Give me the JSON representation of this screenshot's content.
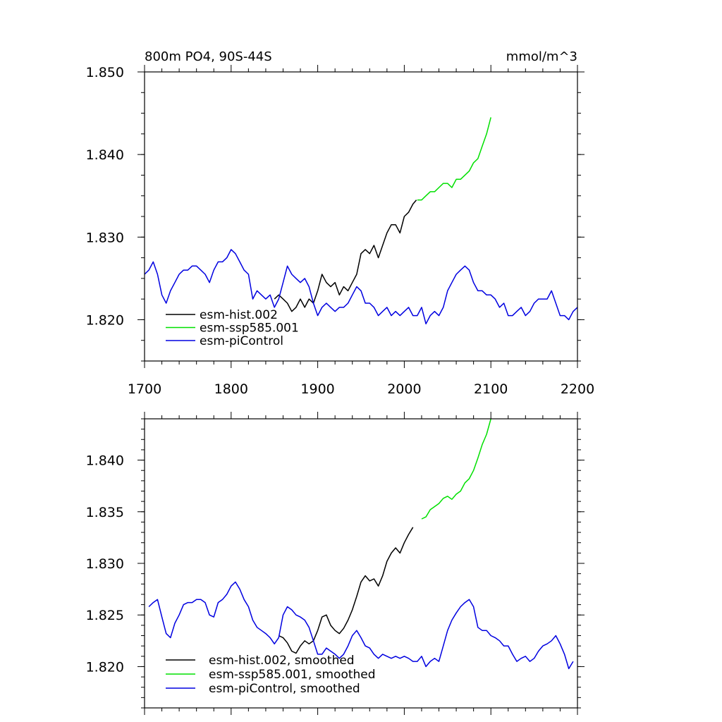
{
  "chart_data": [
    {
      "type": "line",
      "title": "800m PO4, 90S-44S",
      "units": "mmol/m^3",
      "xlim": [
        1700,
        2200
      ],
      "ylim": [
        1.815,
        1.85
      ],
      "x_ticks": [
        1700,
        1800,
        1900,
        2000,
        2100,
        2200
      ],
      "x_tick_labels": [
        "1700",
        "1800",
        "1900",
        "2000",
        "2100",
        "2200"
      ],
      "y_ticks": [
        1.82,
        1.83,
        1.84,
        1.85
      ],
      "y_tick_labels": [
        "1.820",
        "1.830",
        "1.840",
        "1.850"
      ],
      "legend_position": "bottom-left",
      "series": [
        {
          "name": "esm-hist.002",
          "color": "#000000",
          "x": [
            1850,
            1855,
            1860,
            1865,
            1870,
            1875,
            1880,
            1885,
            1890,
            1895,
            1900,
            1905,
            1910,
            1915,
            1920,
            1925,
            1930,
            1935,
            1940,
            1945,
            1950,
            1955,
            1960,
            1965,
            1970,
            1975,
            1980,
            1985,
            1990,
            1995,
            2000,
            2005,
            2010,
            2014
          ],
          "y": [
            1.8225,
            1.823,
            1.8225,
            1.822,
            1.821,
            1.8215,
            1.8225,
            1.8215,
            1.8225,
            1.822,
            1.8235,
            1.8255,
            1.8245,
            1.824,
            1.8245,
            1.823,
            1.824,
            1.8235,
            1.8245,
            1.8255,
            1.828,
            1.8285,
            1.828,
            1.829,
            1.8275,
            1.829,
            1.8305,
            1.8315,
            1.8315,
            1.8305,
            1.8325,
            1.833,
            1.834,
            1.8345
          ]
        },
        {
          "name": "esm-ssp585.001",
          "color": "#00e000",
          "x": [
            2015,
            2020,
            2025,
            2030,
            2035,
            2040,
            2045,
            2050,
            2055,
            2060,
            2065,
            2070,
            2075,
            2080,
            2085,
            2090,
            2095,
            2100
          ],
          "y": [
            1.8345,
            1.8345,
            1.835,
            1.8355,
            1.8355,
            1.836,
            1.8365,
            1.8365,
            1.836,
            1.837,
            1.837,
            1.8375,
            1.838,
            1.839,
            1.8395,
            1.841,
            1.8425,
            1.8445
          ]
        },
        {
          "name": "esm-piControl",
          "color": "#0000e0",
          "x": [
            1700,
            1705,
            1710,
            1715,
            1720,
            1725,
            1730,
            1735,
            1740,
            1745,
            1750,
            1755,
            1760,
            1765,
            1770,
            1775,
            1780,
            1785,
            1790,
            1795,
            1800,
            1805,
            1810,
            1815,
            1820,
            1825,
            1830,
            1835,
            1840,
            1845,
            1850,
            1855,
            1860,
            1865,
            1870,
            1875,
            1880,
            1885,
            1890,
            1895,
            1900,
            1905,
            1910,
            1915,
            1920,
            1925,
            1930,
            1935,
            1940,
            1945,
            1950,
            1955,
            1960,
            1965,
            1970,
            1975,
            1980,
            1985,
            1990,
            1995,
            2000,
            2005,
            2010,
            2015,
            2020,
            2025,
            2030,
            2035,
            2040,
            2045,
            2050,
            2055,
            2060,
            2065,
            2070,
            2075,
            2080,
            2085,
            2090,
            2095,
            2100,
            2105,
            2110,
            2115,
            2120,
            2125,
            2130,
            2135,
            2140,
            2145,
            2150,
            2155,
            2160,
            2165,
            2170,
            2175,
            2180,
            2185,
            2190,
            2195,
            2200
          ],
          "y": [
            1.8255,
            1.826,
            1.827,
            1.8255,
            1.823,
            1.822,
            1.8235,
            1.8245,
            1.8255,
            1.826,
            1.826,
            1.8265,
            1.8265,
            1.826,
            1.8255,
            1.8245,
            1.826,
            1.827,
            1.827,
            1.8275,
            1.8285,
            1.828,
            1.827,
            1.826,
            1.8255,
            1.8225,
            1.8235,
            1.823,
            1.8225,
            1.823,
            1.8215,
            1.8225,
            1.8245,
            1.8265,
            1.8255,
            1.825,
            1.8245,
            1.825,
            1.824,
            1.822,
            1.8205,
            1.8215,
            1.822,
            1.8215,
            1.821,
            1.8215,
            1.8215,
            1.822,
            1.823,
            1.824,
            1.8235,
            1.822,
            1.822,
            1.8215,
            1.8205,
            1.821,
            1.8215,
            1.8205,
            1.821,
            1.8205,
            1.821,
            1.8215,
            1.8205,
            1.8205,
            1.8215,
            1.8195,
            1.8205,
            1.821,
            1.8205,
            1.8215,
            1.8235,
            1.8245,
            1.8255,
            1.826,
            1.8265,
            1.826,
            1.8245,
            1.8235,
            1.8235,
            1.823,
            1.823,
            1.8225,
            1.8215,
            1.822,
            1.8205,
            1.8205,
            1.821,
            1.8215,
            1.8205,
            1.821,
            1.822,
            1.8225,
            1.8225,
            1.8225,
            1.8235,
            1.822,
            1.8205,
            1.8205,
            1.82,
            1.821,
            1.8215
          ]
        }
      ]
    },
    {
      "type": "line",
      "xlim": [
        1700,
        2200
      ],
      "ylim": [
        1.816,
        1.844
      ],
      "y_ticks": [
        1.82,
        1.825,
        1.83,
        1.835,
        1.84
      ],
      "y_tick_labels": [
        "1.820",
        "1.825",
        "1.830",
        "1.835",
        "1.840"
      ],
      "x_ticks": [
        1700,
        1800,
        1900,
        2000,
        2100,
        2200
      ],
      "legend_position": "bottom-left",
      "series": [
        {
          "name": "esm-hist.002, smoothed",
          "color": "#000000",
          "x": [
            1855,
            1860,
            1865,
            1870,
            1875,
            1880,
            1885,
            1890,
            1895,
            1900,
            1905,
            1910,
            1915,
            1920,
            1925,
            1930,
            1935,
            1940,
            1945,
            1950,
            1955,
            1960,
            1965,
            1970,
            1975,
            1980,
            1985,
            1990,
            1995,
            2000,
            2005,
            2010
          ],
          "y": [
            1.823,
            1.8228,
            1.8223,
            1.8215,
            1.8213,
            1.822,
            1.8225,
            1.8222,
            1.8225,
            1.8235,
            1.8248,
            1.825,
            1.824,
            1.8235,
            1.8232,
            1.8237,
            1.8245,
            1.8255,
            1.8268,
            1.8282,
            1.8288,
            1.8283,
            1.8285,
            1.8278,
            1.8288,
            1.8302,
            1.831,
            1.8315,
            1.831,
            1.832,
            1.8328,
            1.8335
          ]
        },
        {
          "name": "esm-ssp585.001, smoothed",
          "color": "#00e000",
          "x": [
            2020,
            2025,
            2030,
            2035,
            2040,
            2045,
            2050,
            2055,
            2060,
            2065,
            2070,
            2075,
            2080,
            2085,
            2090,
            2095,
            2100
          ],
          "y": [
            1.8343,
            1.8345,
            1.8352,
            1.8355,
            1.8358,
            1.8363,
            1.8365,
            1.8362,
            1.8367,
            1.837,
            1.8378,
            1.8382,
            1.839,
            1.8402,
            1.8415,
            1.8425,
            1.844
          ]
        },
        {
          "name": "esm-piControl, smoothed",
          "color": "#0000e0",
          "x": [
            1705,
            1710,
            1715,
            1720,
            1725,
            1730,
            1735,
            1740,
            1745,
            1750,
            1755,
            1760,
            1765,
            1770,
            1775,
            1780,
            1785,
            1790,
            1795,
            1800,
            1805,
            1810,
            1815,
            1820,
            1825,
            1830,
            1835,
            1840,
            1845,
            1850,
            1855,
            1860,
            1865,
            1870,
            1875,
            1880,
            1885,
            1890,
            1895,
            1900,
            1905,
            1910,
            1915,
            1920,
            1925,
            1930,
            1935,
            1940,
            1945,
            1950,
            1955,
            1960,
            1965,
            1970,
            1975,
            1980,
            1985,
            1990,
            1995,
            2000,
            2005,
            2010,
            2015,
            2020,
            2025,
            2030,
            2035,
            2040,
            2045,
            2050,
            2055,
            2060,
            2065,
            2070,
            2075,
            2080,
            2085,
            2090,
            2095,
            2100,
            2105,
            2110,
            2115,
            2120,
            2125,
            2130,
            2135,
            2140,
            2145,
            2150,
            2155,
            2160,
            2165,
            2170,
            2175,
            2180,
            2185,
            2190,
            2195
          ],
          "y": [
            1.8258,
            1.8262,
            1.8265,
            1.8248,
            1.8232,
            1.8228,
            1.8242,
            1.825,
            1.826,
            1.8262,
            1.8262,
            1.8265,
            1.8265,
            1.8262,
            1.825,
            1.8248,
            1.8262,
            1.8265,
            1.827,
            1.8278,
            1.8282,
            1.8275,
            1.8265,
            1.8258,
            1.8245,
            1.8238,
            1.8235,
            1.8232,
            1.8228,
            1.8222,
            1.8228,
            1.825,
            1.8258,
            1.8255,
            1.825,
            1.8248,
            1.8245,
            1.8238,
            1.8225,
            1.8212,
            1.8212,
            1.8218,
            1.8215,
            1.8212,
            1.8208,
            1.8212,
            1.822,
            1.823,
            1.8235,
            1.8228,
            1.822,
            1.8218,
            1.8212,
            1.8208,
            1.8212,
            1.821,
            1.8208,
            1.821,
            1.8208,
            1.821,
            1.8208,
            1.8205,
            1.8205,
            1.821,
            1.82,
            1.8205,
            1.8208,
            1.8205,
            1.822,
            1.8235,
            1.8245,
            1.8252,
            1.8258,
            1.8262,
            1.8265,
            1.8258,
            1.8238,
            1.8235,
            1.8235,
            1.823,
            1.8228,
            1.8225,
            1.822,
            1.822,
            1.8212,
            1.8205,
            1.8208,
            1.821,
            1.8205,
            1.8208,
            1.8215,
            1.822,
            1.8222,
            1.8225,
            1.823,
            1.8222,
            1.8212,
            1.8198,
            1.8205
          ]
        }
      ]
    }
  ]
}
